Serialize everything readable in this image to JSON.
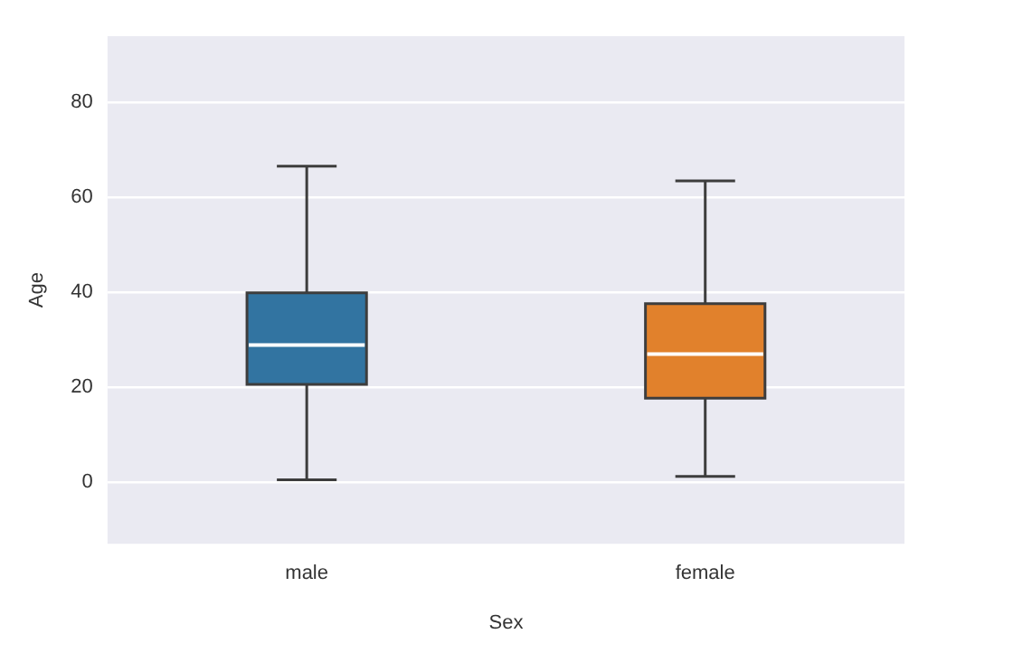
{
  "chart_data": {
    "type": "box",
    "xlabel": "Sex",
    "ylabel": "Age",
    "categories": [
      "male",
      "female"
    ],
    "colors": [
      "#3274a1",
      "#e1812c"
    ],
    "boxes": [
      {
        "low": 0.5,
        "q1": 20.6,
        "median": 28.9,
        "q3": 39.9,
        "high": 66.6
      },
      {
        "low": 1.2,
        "q1": 17.7,
        "median": 27,
        "q3": 37.6,
        "high": 63.5
      }
    ],
    "ylim": [
      -13,
      94
    ],
    "yticks": [
      0,
      20,
      40,
      60,
      80
    ],
    "grid": "y",
    "legend": false
  }
}
